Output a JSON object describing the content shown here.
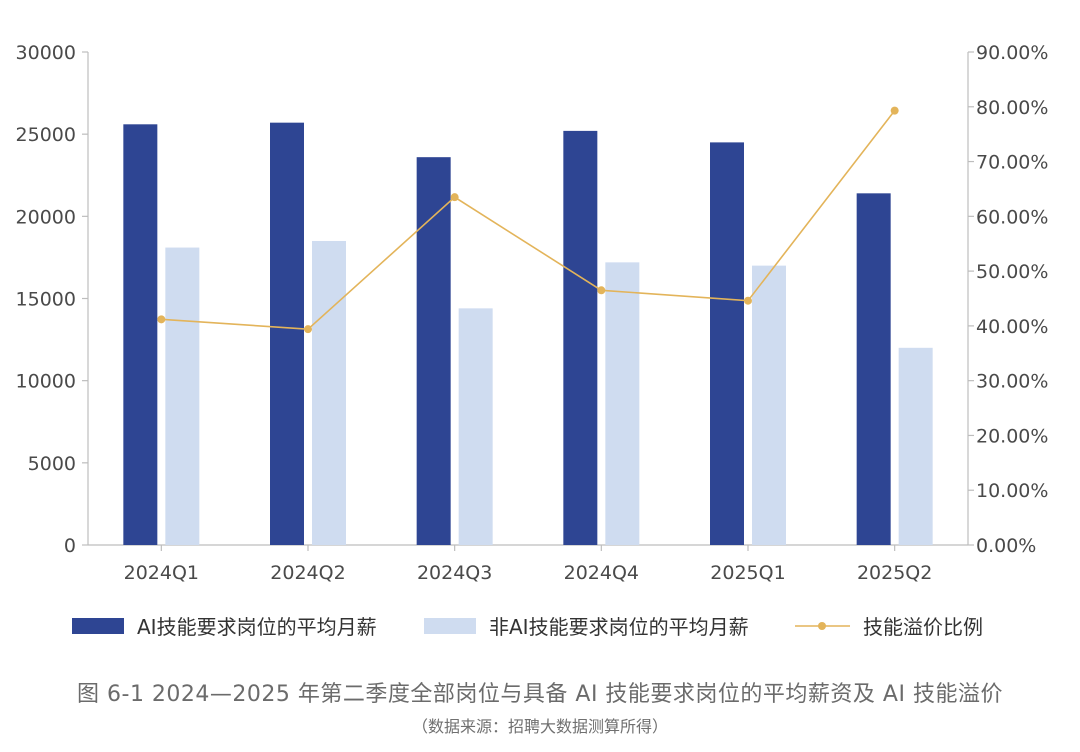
{
  "chart_data": {
    "type": "bar",
    "categories": [
      "2024Q1",
      "2024Q2",
      "2024Q3",
      "2024Q4",
      "2025Q1",
      "2025Q2"
    ],
    "series": [
      {
        "name": "AI技能要求岗位的平均月薪",
        "type": "bar",
        "axis": "left",
        "color": "#2e4593",
        "values": [
          25600,
          25700,
          23600,
          25200,
          24500,
          21400
        ]
      },
      {
        "name": "非AI技能要求岗位的平均月薪",
        "type": "bar",
        "axis": "left",
        "color": "#cfdcf0",
        "values": [
          18100,
          18500,
          14400,
          17200,
          17000,
          12000
        ]
      },
      {
        "name": "技能溢价比例",
        "type": "line",
        "axis": "right",
        "color": "#e3b45a",
        "values": [
          41.2,
          39.4,
          63.5,
          46.5,
          44.6,
          79.3
        ]
      }
    ],
    "y_left": {
      "min": 0,
      "max": 30000,
      "ticks": [
        "0",
        "5000",
        "10000",
        "15000",
        "20000",
        "25000",
        "30000"
      ]
    },
    "y_right": {
      "min": 0,
      "max": 90,
      "ticks": [
        "0.00%",
        "10.00%",
        "20.00%",
        "30.00%",
        "40.00%",
        "50.00%",
        "60.00%",
        "70.00%",
        "80.00%",
        "90.00%"
      ]
    },
    "legend_position": "bottom",
    "grid": false
  },
  "caption": {
    "title": "图 6-1  2024—2025 年第二季度全部岗位与具备 AI 技能要求岗位的平均薪资及 AI 技能溢价",
    "source": "（数据来源：招聘大数据测算所得）"
  }
}
